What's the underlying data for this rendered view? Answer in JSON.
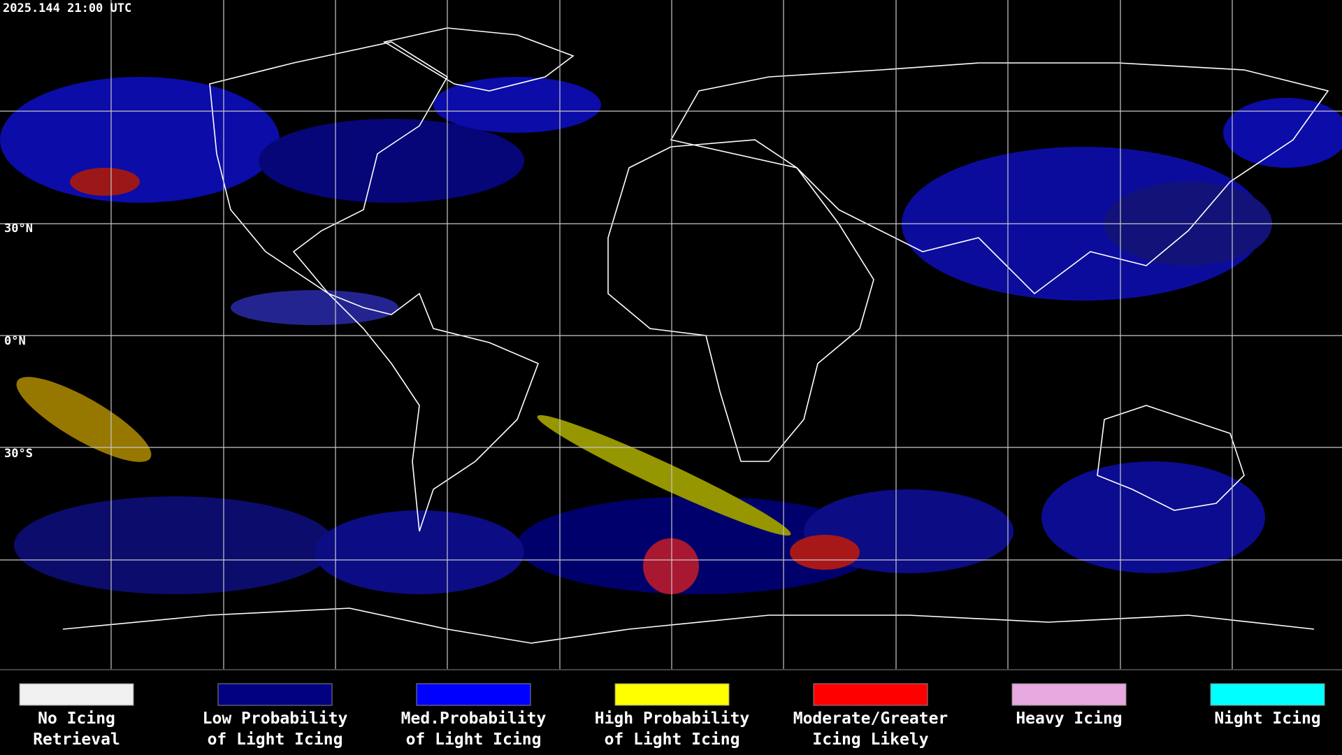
{
  "header": {
    "timestamp": "2025.144 21:00 UTC"
  },
  "map": {
    "latitude_labels": [
      "30°N",
      "0°N",
      "30°S"
    ]
  },
  "legend": {
    "items": [
      {
        "label_lines": [
          "No Icing",
          "Retrieval"
        ],
        "color": "#f0f0f0"
      },
      {
        "label_lines": [
          "Low Probability",
          "of Light Icing"
        ],
        "color": "#000080"
      },
      {
        "label_lines": [
          "Med.Probability",
          "of Light Icing"
        ],
        "color": "#0000ff"
      },
      {
        "label_lines": [
          "High Probability",
          "of Light Icing"
        ],
        "color": "#ffff00"
      },
      {
        "label_lines": [
          "Moderate/Greater",
          "Icing Likely"
        ],
        "color": "#ff0000"
      },
      {
        "label_lines": [
          "Heavy Icing"
        ],
        "color": "#e8a8e0"
      },
      {
        "label_lines": [
          "Night Icing"
        ],
        "color": "#00ffff"
      }
    ]
  }
}
